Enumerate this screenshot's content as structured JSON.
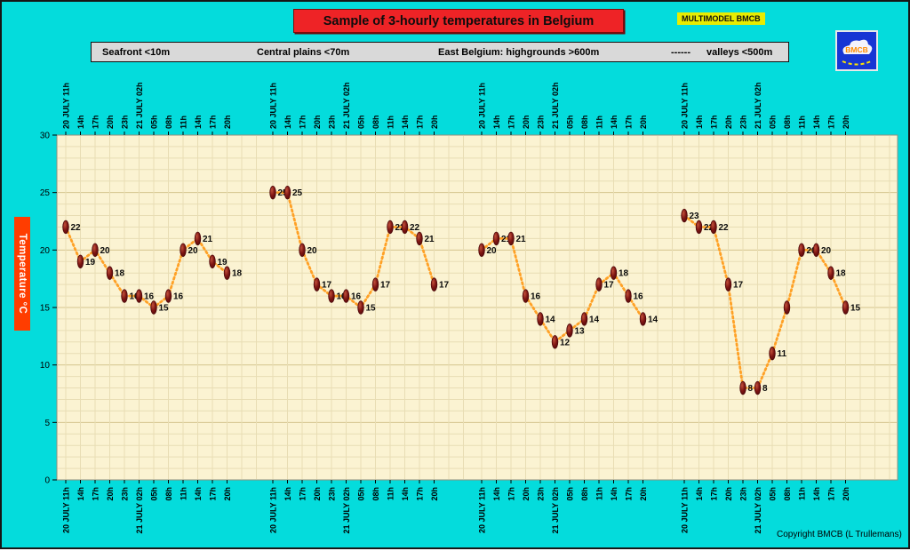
{
  "badge": "MULTIMODEL BMCB",
  "logo_text": "BMCB",
  "copyright": "Copyright BMCB (L Trullemans)",
  "legend": {
    "items": [
      "Seafront <10m",
      "Central plains <70m",
      "East Belgium: highgrounds >600m",
      "------",
      "valleys <500m"
    ]
  },
  "colors": {
    "canvas_bg": "#04dcdc",
    "plot_bg": "#fbf3d2",
    "title_bg": "#ee2326",
    "badge_bg": "#e8ec00",
    "legend_bg": "#d9d9d9",
    "ylabel_bg": "#ff3d00",
    "logo_bg": "#1736d4",
    "line": "#ffa126",
    "marker": "#7c1412"
  },
  "chart_data": {
    "type": "line",
    "title": "Sample of 3-hourly temperatures in Belgium",
    "ylabel": "Temperature °C",
    "ylim": [
      0,
      30
    ],
    "y_ticks": [
      0,
      5,
      10,
      15,
      20,
      25,
      30
    ],
    "grid": true,
    "legend_position": "top",
    "group_count": 4,
    "x_tick_labels": [
      "20 JULY 11h",
      "14h",
      "17h",
      "20h",
      "23h",
      "21 JULY 02h",
      "05h",
      "08h",
      "11h",
      "14h",
      "17h",
      "20h"
    ],
    "series": [
      {
        "name": "Seafront <10m",
        "values": [
          22,
          19,
          20,
          18,
          16,
          16,
          15,
          16,
          20,
          21,
          19,
          18
        ],
        "labels": [
          "22",
          "19",
          "20",
          "18",
          "16",
          "16",
          "15",
          "16",
          "20",
          "21",
          "19",
          "18"
        ]
      },
      {
        "name": "Central plains <70m",
        "values": [
          25,
          25,
          20,
          17,
          16,
          16,
          15,
          17,
          22,
          22,
          21,
          17
        ],
        "labels": [
          "25",
          "25",
          "20",
          "17",
          "16",
          "16",
          "15",
          "17",
          "22",
          "22",
          "21",
          "17"
        ]
      },
      {
        "name": "East Belgium: highgrounds >600m",
        "values": [
          20,
          21,
          21,
          16,
          14,
          12,
          13,
          14,
          17,
          18,
          16,
          14
        ],
        "labels": [
          "20",
          "21",
          "21",
          "16",
          "14",
          "12",
          "13",
          "14",
          "17",
          "18",
          "16",
          "14"
        ]
      },
      {
        "name": "East Belgium: valleys <500m",
        "values": [
          23,
          22,
          22,
          17,
          8,
          8,
          11,
          15,
          20,
          20,
          18,
          15
        ],
        "labels": [
          "23",
          "22",
          "22",
          "17",
          "8",
          "8",
          "11",
          "",
          "20",
          "20",
          "18",
          "15"
        ]
      }
    ],
    "marker_color": "#7c1412",
    "line_color": "#ffa126"
  }
}
